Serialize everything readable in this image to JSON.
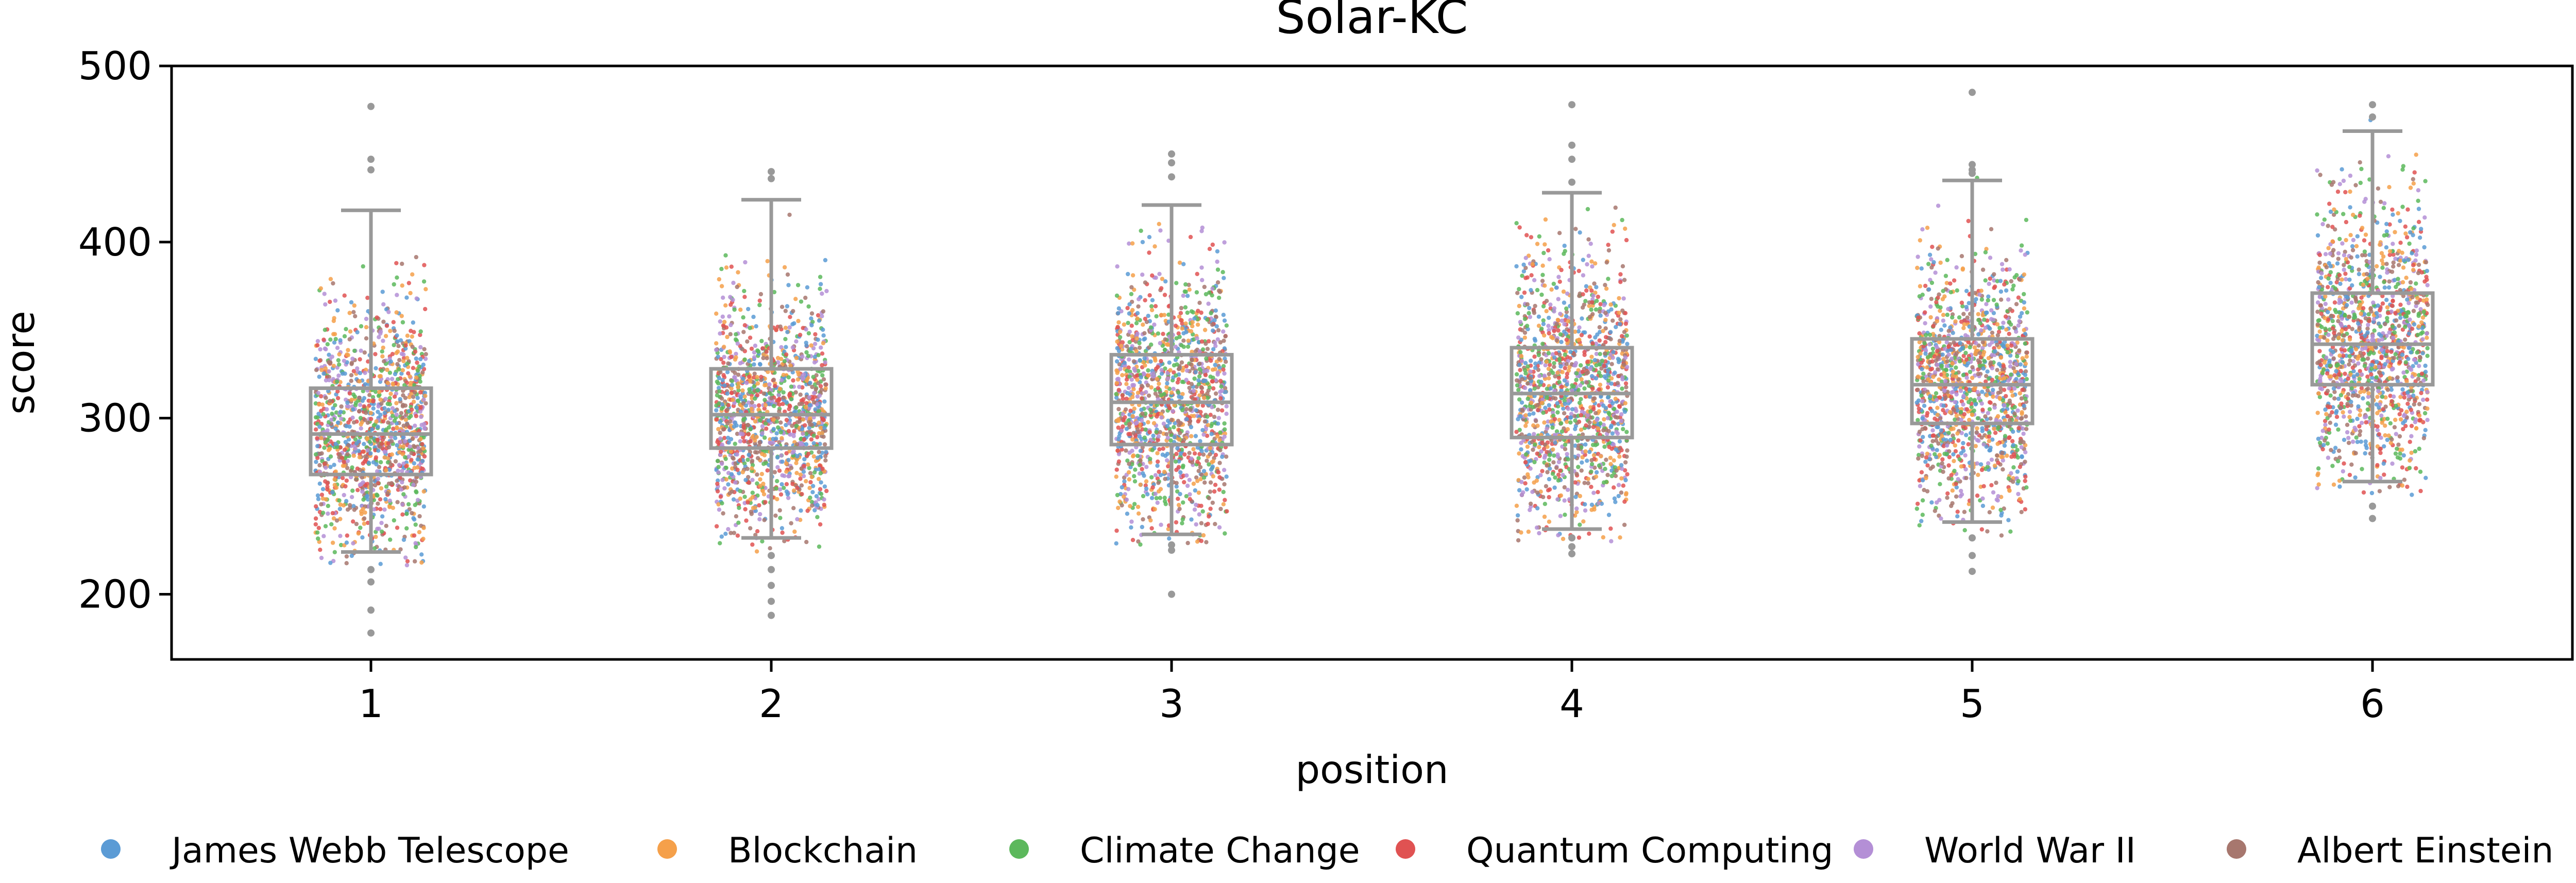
{
  "chart_data": {
    "type": "scatter",
    "title": "Solar-KC",
    "xlabel": "position",
    "ylabel": "score",
    "categories": [
      "1",
      "2",
      "3",
      "4",
      "5",
      "6"
    ],
    "y_ticks": [
      "200",
      "300",
      "400",
      "500"
    ],
    "ylim": [
      163,
      500
    ],
    "grid": false,
    "legend_placement": "bottom",
    "legend": [
      {
        "name": "James Webb Telescope",
        "color": "#5b9bd5"
      },
      {
        "name": "Blockchain",
        "color": "#f5a04a"
      },
      {
        "name": "Climate Change",
        "color": "#5cb85c"
      },
      {
        "name": "Quantum Computing",
        "color": "#e05252"
      },
      {
        "name": "World War II",
        "color": "#b48fd6"
      },
      {
        "name": "Albert Einstein",
        "color": "#a7776e"
      }
    ],
    "box_color": "#999999",
    "boxplots": [
      {
        "position": "1",
        "whisker_low": 224,
        "q1": 268,
        "median": 291,
        "q3": 317,
        "whisker_high": 418,
        "outliers": [
          477,
          447,
          441,
          214,
          207,
          191,
          178
        ]
      },
      {
        "position": "2",
        "whisker_low": 232,
        "q1": 283,
        "median": 302,
        "q3": 328,
        "whisker_high": 424,
        "outliers": [
          440,
          436,
          222,
          214,
          205,
          196,
          188
        ]
      },
      {
        "position": "3",
        "whisker_low": 234,
        "q1": 285,
        "median": 309,
        "q3": 336,
        "whisker_high": 421,
        "outliers": [
          450,
          445,
          437,
          228,
          225,
          200
        ]
      },
      {
        "position": "4",
        "whisker_low": 237,
        "q1": 289,
        "median": 314,
        "q3": 340,
        "whisker_high": 428,
        "outliers": [
          478,
          455,
          447,
          434,
          232,
          227,
          223
        ]
      },
      {
        "position": "5",
        "whisker_low": 241,
        "q1": 297,
        "median": 319,
        "q3": 345,
        "whisker_high": 435,
        "outliers": [
          485,
          444,
          441,
          439,
          232,
          222,
          213
        ]
      },
      {
        "position": "6",
        "whisker_low": 264,
        "q1": 319,
        "median": 342,
        "q3": 371,
        "whisker_high": 463,
        "outliers": [
          478,
          471,
          250,
          243
        ]
      }
    ]
  }
}
